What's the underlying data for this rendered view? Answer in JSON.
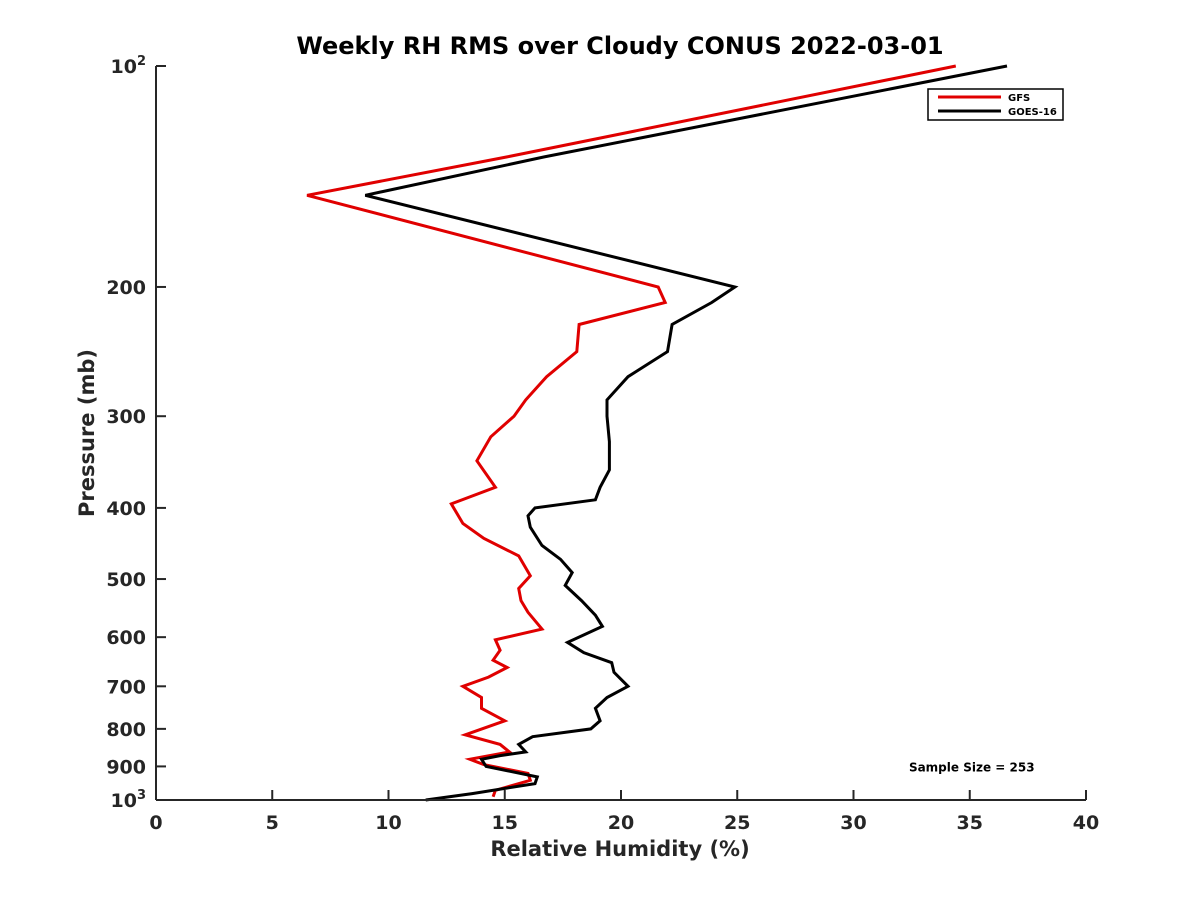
{
  "chart_data": {
    "type": "line",
    "title": "Weekly RH RMS over Cloudy CONUS 2022-03-01",
    "xlabel": "Relative Humidity (%)",
    "ylabel": "Pressure (mb)",
    "xlim": [
      0,
      40
    ],
    "ylim": [
      100,
      1000
    ],
    "y_scale": "log",
    "y_reversed": true,
    "x_ticks": [
      0,
      5,
      10,
      15,
      20,
      25,
      30,
      35,
      40
    ],
    "y_ticks": [
      {
        "value": 100,
        "base": "10",
        "exp": "2"
      },
      {
        "value": 200,
        "label": "200"
      },
      {
        "value": 300,
        "label": "300"
      },
      {
        "value": 400,
        "label": "400"
      },
      {
        "value": 500,
        "label": "500"
      },
      {
        "value": 600,
        "label": "600"
      },
      {
        "value": 700,
        "label": "700"
      },
      {
        "value": 800,
        "label": "800"
      },
      {
        "value": 900,
        "label": "900"
      },
      {
        "value": 1000,
        "base": "10",
        "exp": "3"
      }
    ],
    "grid": false,
    "legend_position": "top-right",
    "series": [
      {
        "name": "GFS",
        "color": "#e00000",
        "x": [
          34.4,
          15.1,
          6.5,
          21.6,
          21.9,
          18.2,
          18.1,
          16.8,
          15.9,
          15.4,
          14.4,
          13.8,
          14.6,
          12.7,
          13.2,
          14.1,
          15.6,
          16.1,
          15.6,
          15.7,
          16.0,
          16.6,
          14.6,
          14.8,
          14.5,
          15.1,
          14.3,
          13.2,
          14.0,
          14.0,
          15.0,
          13.3,
          14.8,
          15.2,
          13.5,
          14.1,
          16.0,
          16.1,
          14.6,
          14.5
        ],
        "y": [
          100,
          133,
          150,
          200,
          210,
          225,
          245,
          265,
          285,
          300,
          320,
          345,
          375,
          395,
          420,
          440,
          465,
          495,
          515,
          535,
          555,
          585,
          605,
          625,
          645,
          660,
          680,
          700,
          725,
          750,
          780,
          815,
          840,
          860,
          880,
          895,
          920,
          940,
          970,
          990
        ]
      },
      {
        "name": "GOES-16",
        "color": "#000000",
        "x": [
          36.6,
          16.7,
          9.0,
          24.9,
          23.9,
          22.2,
          22.0,
          20.3,
          19.4,
          19.4,
          19.5,
          19.5,
          19.1,
          18.9,
          16.3,
          16.0,
          16.1,
          16.6,
          17.4,
          17.9,
          17.6,
          18.3,
          18.9,
          19.2,
          17.7,
          18.4,
          19.6,
          19.7,
          20.3,
          19.4,
          18.9,
          19.1,
          18.7,
          16.2,
          15.6,
          15.9,
          14.8,
          14.0,
          14.2,
          16.4,
          16.3,
          13.6,
          11.6
        ],
        "y": [
          100,
          133,
          150,
          200,
          210,
          225,
          245,
          265,
          285,
          300,
          325,
          355,
          375,
          390,
          400,
          410,
          425,
          450,
          470,
          490,
          510,
          535,
          560,
          580,
          610,
          630,
          650,
          670,
          700,
          725,
          750,
          780,
          800,
          820,
          840,
          860,
          870,
          880,
          900,
          930,
          950,
          980,
          1000
        ]
      }
    ],
    "annotations": [
      {
        "text": "Sample Size = 253",
        "x": 35,
        "y": 900
      }
    ]
  }
}
